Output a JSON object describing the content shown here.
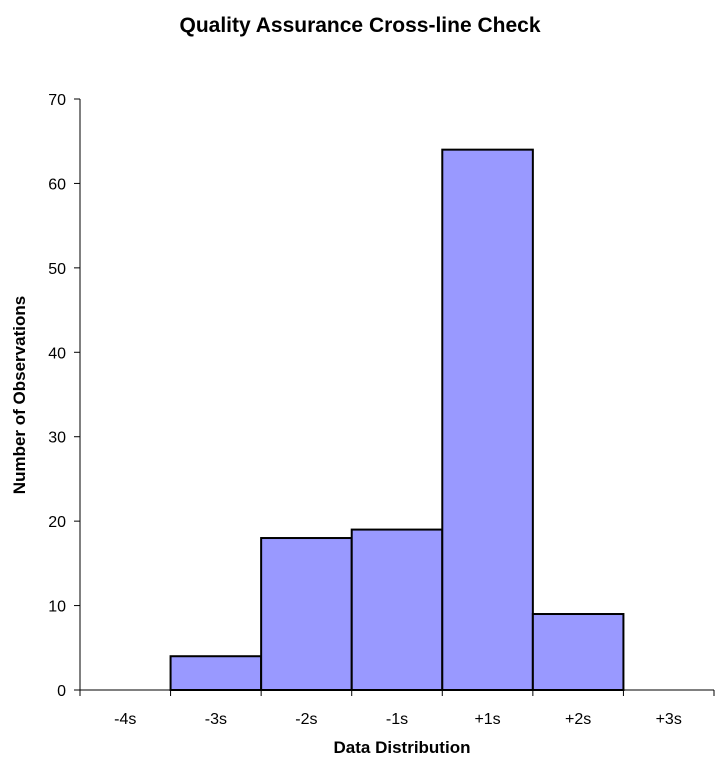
{
  "chart_data": {
    "type": "bar",
    "title": "Quality Assurance Cross-line Check",
    "xlabel": "Data Distribution",
    "ylabel": "Number of Observations",
    "categories": [
      "-4s",
      "-3s",
      "-2s",
      "-1s",
      "+1s",
      "+2s",
      "+3s"
    ],
    "values": [
      0,
      4,
      18,
      19,
      64,
      9,
      0
    ],
    "ylim": [
      0,
      70
    ],
    "yticks": [
      0,
      10,
      20,
      30,
      40,
      50,
      60,
      70
    ],
    "grid": false,
    "legend": "none",
    "colors": {
      "bar_fill": "#9999FF",
      "bar_stroke": "#000000"
    }
  }
}
